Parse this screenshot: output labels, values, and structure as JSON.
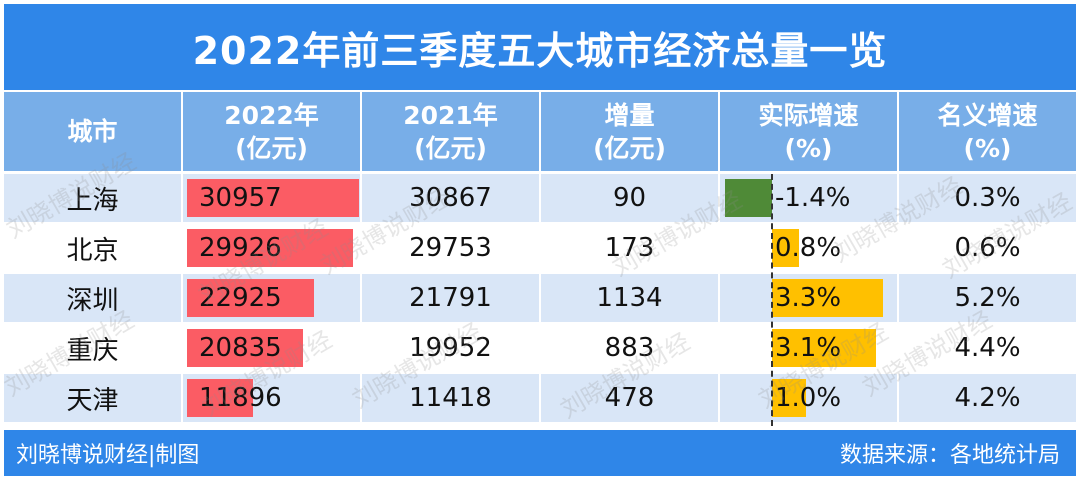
{
  "title": "2022年前三季度五大城市经济总量一览",
  "headers": {
    "city": "城市",
    "y2022_line1": "2022年",
    "y2022_line2": "(亿元)",
    "y2021_line1": "2021年",
    "y2021_line2": "(亿元)",
    "increment_line1": "增量",
    "increment_line2": "(亿元)",
    "real_growth_line1": "实际增速",
    "real_growth_line2": "(%)",
    "nominal_growth_line1": "名义增速",
    "nominal_growth_line2": "(%)"
  },
  "rows": [
    {
      "city": "上海",
      "y2022": "30957",
      "y2021": "30867",
      "increment": "90",
      "real_growth": "-1.4%",
      "nominal_growth": "0.3%"
    },
    {
      "city": "北京",
      "y2022": "29926",
      "y2021": "29753",
      "increment": "173",
      "real_growth": "0.8%",
      "nominal_growth": "0.6%"
    },
    {
      "city": "深圳",
      "y2022": "22925",
      "y2021": "21791",
      "increment": "1134",
      "real_growth": "3.3%",
      "nominal_growth": "5.2%"
    },
    {
      "city": "重庆",
      "y2022": "20835",
      "y2021": "19952",
      "increment": "883",
      "real_growth": "3.1%",
      "nominal_growth": "4.4%"
    },
    {
      "city": "天津",
      "y2022": "11896",
      "y2021": "11418",
      "increment": "478",
      "real_growth": "1.0%",
      "nominal_growth": "4.2%"
    }
  ],
  "footer": {
    "left": "刘晓博说财经|制图",
    "right": "数据来源：各地统计局"
  },
  "watermark": "刘晓博说财经",
  "colors": {
    "title_bg": "#2f86e8",
    "header_bg": "#78aee8",
    "row_alt_bg": "#d9e6f7",
    "bar_2022": "#fb5c64",
    "growth_positive": "#ffc000",
    "growth_negative": "#4f8a37"
  },
  "chart_data": {
    "type": "table",
    "title": "2022年前三季度五大城市经济总量一览",
    "columns": [
      "城市",
      "2022年(亿元)",
      "2021年(亿元)",
      "增量(亿元)",
      "实际增速(%)",
      "名义增速(%)"
    ],
    "categories": [
      "上海",
      "北京",
      "深圳",
      "重庆",
      "天津"
    ],
    "series": [
      {
        "name": "2022年(亿元)",
        "values": [
          30957,
          29926,
          22925,
          20835,
          11896
        ]
      },
      {
        "name": "2021年(亿元)",
        "values": [
          30867,
          29753,
          21791,
          19952,
          11418
        ]
      },
      {
        "name": "增量(亿元)",
        "values": [
          90,
          173,
          1134,
          883,
          478
        ]
      },
      {
        "name": "实际增速(%)",
        "values": [
          -1.4,
          0.8,
          3.3,
          3.1,
          1.0
        ]
      },
      {
        "name": "名义增速(%)",
        "values": [
          0.3,
          0.6,
          5.2,
          4.4,
          4.2
        ]
      }
    ]
  }
}
